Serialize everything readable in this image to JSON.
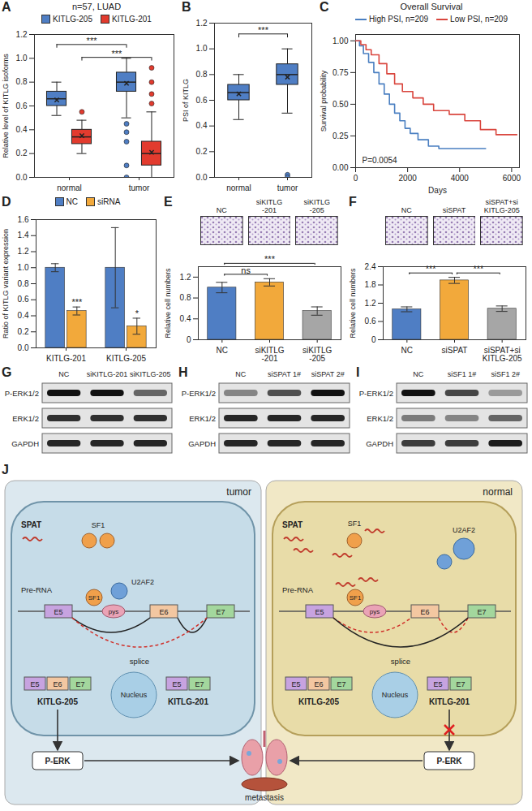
{
  "chart_data": [
    {
      "panel": "A",
      "type": "box",
      "title": "n=57, LUAD",
      "ylabel": "Relative level of KITLG isoforms",
      "categories": [
        "normal",
        "tumor"
      ],
      "legend": "top",
      "ylim": [
        0,
        1.2
      ],
      "yticks": [
        {
          "value": 0,
          "label": "0.0"
        },
        0.2,
        0.4,
        0.6,
        0.8,
        {
          "value": 1,
          "label": "1.0"
        },
        1.2
      ],
      "series": [
        {
          "name": "KITLG-205",
          "color": "#4f7ec4",
          "boxes": [
            {
              "min": 0.52,
              "q1": 0.6,
              "median": 0.66,
              "q3": 0.72,
              "max": 0.8,
              "mean": 0.65
            },
            {
              "min": 0.5,
              "q1": 0.72,
              "median": 0.8,
              "q3": 0.88,
              "max": 1.0,
              "mean": 0.79
            }
          ],
          "outliers": [
            [],
            [
              0.45,
              0.38,
              0.3,
              0.1,
              0
            ]
          ]
        },
        {
          "name": "KITLG-201",
          "color": "#e23b2e",
          "boxes": [
            {
              "min": 0.2,
              "q1": 0.28,
              "median": 0.34,
              "q3": 0.4,
              "max": 0.48,
              "mean": 0.35
            },
            {
              "min": 0,
              "q1": 0.1,
              "median": 0.2,
              "q3": 0.3,
              "max": 0.55,
              "mean": 0.21
            }
          ],
          "outliers": [
            [
              0.55
            ],
            [
              0.62,
              0.7,
              0.8,
              0.92
            ]
          ]
        }
      ],
      "annotations": [
        {
          "text": "***",
          "series": "KITLG-201",
          "between": [
            0,
            1
          ]
        },
        {
          "text": "***",
          "series": "KITLG-205",
          "between": [
            0,
            1
          ]
        }
      ]
    },
    {
      "panel": "B",
      "type": "box",
      "ylabel": "PSI of KITLG",
      "categories": [
        "normal",
        "tumor"
      ],
      "ylim": [
        0,
        1.2
      ],
      "yticks": [
        {
          "value": 0,
          "label": "0.0"
        },
        0.2,
        0.4,
        0.6,
        0.8,
        {
          "value": 1,
          "label": "1.0"
        },
        1.2
      ],
      "series": [
        {
          "color": "#4f7ec4",
          "boxes": [
            {
              "min": 0.45,
              "q1": 0.6,
              "median": 0.66,
              "q3": 0.72,
              "max": 0.8,
              "mean": 0.65
            },
            {
              "min": 0.5,
              "q1": 0.72,
              "median": 0.8,
              "q3": 0.88,
              "max": 1.0,
              "mean": 0.78
            }
          ],
          "outliers": [
            [],
            [
              0.02,
              0
            ]
          ]
        }
      ],
      "annotations": [
        {
          "text": "***",
          "between": [
            0,
            1
          ]
        }
      ]
    },
    {
      "panel": "C",
      "type": "line",
      "title": "Overall Survival",
      "xlabel": "Days",
      "ylabel": "Survival probability",
      "line_style": "step",
      "legend": "top",
      "xlim": [
        0,
        6300
      ],
      "xticks": [
        0,
        2000,
        4000,
        6000
      ],
      "ylim": [
        0,
        1.05
      ],
      "yticks": [
        {
          "value": 0,
          "label": "0.00"
        },
        0.25,
        {
          "value": 0.5,
          "label": "0.50"
        },
        0.75,
        {
          "value": 1,
          "label": "1.00"
        }
      ],
      "series": [
        {
          "name": "High PSI, n=209",
          "color": "#4a7fc1",
          "x": [
            0,
            150,
            300,
            500,
            700,
            900,
            1100,
            1300,
            1500,
            1700,
            1900,
            2100,
            2400,
            2800,
            3200,
            5000
          ],
          "values": [
            1,
            0.96,
            0.9,
            0.83,
            0.75,
            0.66,
            0.58,
            0.5,
            0.43,
            0.37,
            0.31,
            0.27,
            0.22,
            0.17,
            0.15,
            0.15
          ]
        },
        {
          "name": "Low PSI, n=209",
          "color": "#d9463e",
          "x": [
            0,
            200,
            400,
            600,
            900,
            1200,
            1500,
            1800,
            2200,
            2600,
            3000,
            3600,
            4200,
            4800,
            5400,
            6200
          ],
          "values": [
            1,
            0.97,
            0.93,
            0.89,
            0.82,
            0.74,
            0.66,
            0.6,
            0.55,
            0.5,
            0.45,
            0.42,
            0.37,
            0.3,
            0.26,
            0.26
          ]
        }
      ],
      "annotations": [
        {
          "text": "P=0.0054"
        }
      ]
    },
    {
      "panel": "D",
      "type": "bar",
      "ylabel": "Ratio of KITLG variant expression",
      "categories": [
        "KITLG-201",
        "KITLG-205"
      ],
      "legend": "top",
      "ylim": [
        0,
        1.6
      ],
      "yticks": [
        {
          "value": 0,
          "label": "0.0"
        },
        0.2,
        0.4,
        0.6,
        0.8,
        {
          "value": 1,
          "label": "1.0"
        },
        1.2,
        1.4,
        1.6
      ],
      "series": [
        {
          "name": "NC",
          "color": "#4f7ec4",
          "values": [
            1,
            1
          ],
          "errors": [
            0.05,
            0.5
          ]
        },
        {
          "name": "siRNA",
          "color": "#f2a93b",
          "values": [
            0.46,
            0.27
          ],
          "errors": [
            0.05,
            0.1
          ],
          "significance": [
            "***",
            "*"
          ]
        }
      ]
    },
    {
      "panel": "E",
      "type": "bar",
      "images": [
        "NC",
        "siKITLG-201",
        "siKITLG-205"
      ],
      "ylabel": "Relative cell numbers",
      "categories": [
        "NC",
        "siKITLG-201",
        "siKITLG-205"
      ],
      "values": [
        1,
        1.1,
        0.55
      ],
      "errors": [
        0.1,
        0.07,
        0.08
      ],
      "colors": [
        "#4f7ec4",
        "#f2a93b",
        "#a6a6a6"
      ],
      "ylim": [
        0,
        1.4
      ],
      "yticks": [
        0,
        0.4,
        0.8,
        1.2
      ],
      "annotations": [
        {
          "text": "ns",
          "between": [
            0,
            1
          ]
        },
        {
          "text": "***",
          "between": [
            0,
            2
          ]
        }
      ]
    },
    {
      "panel": "F",
      "type": "bar",
      "images": [
        "NC",
        "siSPAT",
        "siSPAT+si KITLG-205"
      ],
      "ylabel": "Relative cell numbers",
      "categories": [
        "NC",
        "siSPAT",
        "siSPAT+si KITLG-205"
      ],
      "values": [
        1,
        1.95,
        1.02
      ],
      "errors": [
        0.08,
        0.1,
        0.09
      ],
      "colors": [
        "#4f7ec4",
        "#f2a93b",
        "#a6a6a6"
      ],
      "ylim": [
        0,
        2.4
      ],
      "yticks": [
        0,
        0.6,
        1.2,
        1.8,
        2.4
      ],
      "annotations": [
        {
          "text": "***",
          "between": [
            0,
            1
          ]
        },
        {
          "text": "***",
          "between": [
            1,
            2
          ]
        }
      ]
    }
  ],
  "blots": [
    {
      "panel": "G",
      "lanes": [
        "NC",
        "siKITLG-201",
        "siKITLG-205"
      ],
      "rows": [
        {
          "label": "P-ERK1/2",
          "bands": [
            1,
            1,
            0.6
          ]
        },
        {
          "label": "ERK1/2",
          "bands": [
            0.85,
            0.85,
            0.85
          ]
        },
        {
          "label": "GAPDH",
          "bands": [
            0.9,
            0.9,
            0.9
          ]
        }
      ]
    },
    {
      "panel": "H",
      "lanes": [
        "NC",
        "siSPAT 1#",
        "siSPAT 2#"
      ],
      "rows": [
        {
          "label": "P-ERK1/2",
          "bands": [
            0.45,
            0.7,
            1
          ]
        },
        {
          "label": "ERK1/2",
          "bands": [
            0.9,
            0.9,
            0.9
          ]
        },
        {
          "label": "GAPDH",
          "bands": [
            0.9,
            0.9,
            0.9
          ]
        }
      ]
    },
    {
      "panel": "I",
      "lanes": [
        "NC",
        "siSF1 1#",
        "siSF1 2#"
      ],
      "rows": [
        {
          "label": "P-ERK1/2",
          "bands": [
            1,
            0.75,
            0.35
          ]
        },
        {
          "label": "ERK1/2",
          "bands": [
            0.5,
            0.45,
            0.6
          ]
        },
        {
          "label": "GAPDH",
          "bands": [
            0.8,
            0.8,
            0.95
          ]
        }
      ]
    }
  ],
  "diagram": {
    "panel": "J",
    "cells": [
      {
        "label": "tumor",
        "spat": "SPAT",
        "sf1": "SF1",
        "u2af2": "U2AF2",
        "nucleus": "Nucleus",
        "pre_rna": "Pre-RNA",
        "exons": [
          "E5",
          "E6",
          "E7"
        ],
        "branch": "pys",
        "splice": "splice",
        "spat_binds_sf1": false,
        "u2af2_bound": true,
        "products": [
          {
            "name": "KITLG-205",
            "exons": [
              "E5",
              "E6",
              "E7"
            ]
          },
          {
            "name": "KITLG-201",
            "exons": [
              "E5",
              "E7"
            ]
          }
        ],
        "favored": "KITLG-205",
        "output": "P-ERK",
        "output_active": true
      },
      {
        "label": "normal",
        "spat": "SPAT",
        "sf1": "SF1",
        "u2af2": "U2AF2",
        "nucleus": "Nucleus",
        "pre_rna": "Pre-RNA",
        "exons": [
          "E5",
          "E6",
          "E7"
        ],
        "branch": "pys",
        "splice": "splice",
        "spat_binds_sf1": true,
        "u2af2_bound": false,
        "products": [
          {
            "name": "KITLG-205",
            "exons": [
              "E5",
              "E6",
              "E7"
            ]
          },
          {
            "name": "KITLG-201",
            "exons": [
              "E5",
              "E7"
            ]
          }
        ],
        "favored": "KITLG-201",
        "output": "P-ERK",
        "output_active": false
      }
    ],
    "outcome": "metastasis"
  }
}
